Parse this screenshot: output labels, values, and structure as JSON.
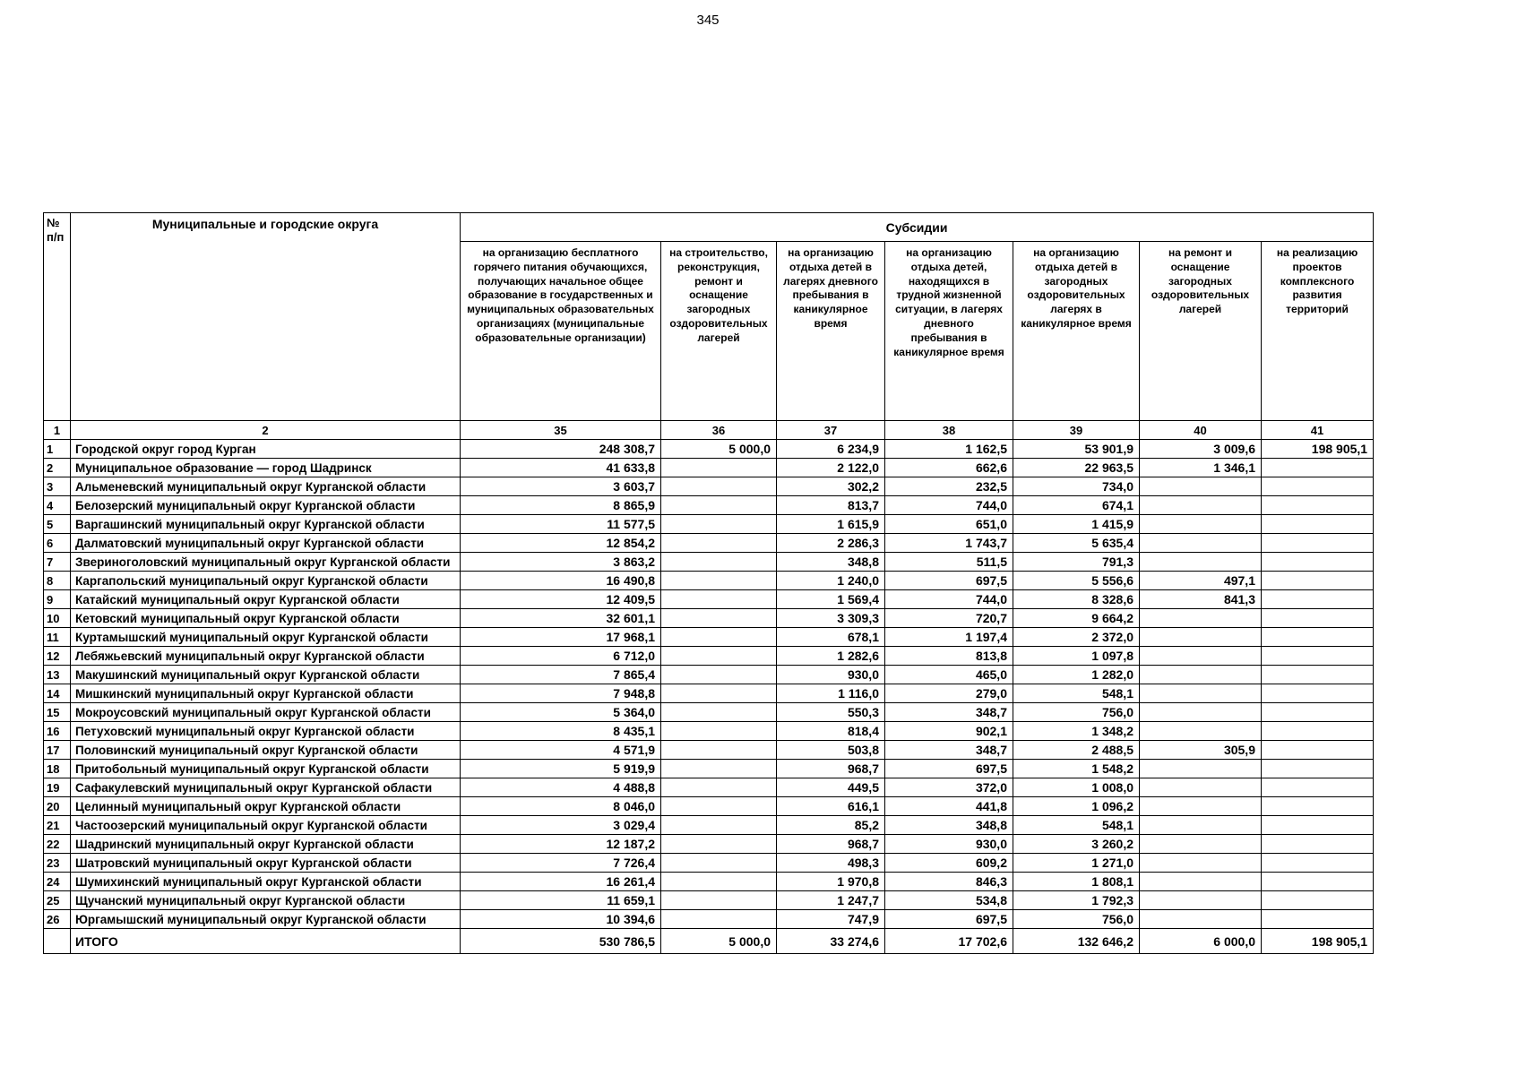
{
  "page": {
    "number": "345"
  },
  "table": {
    "headers": {
      "num": "№\nп/п",
      "municipality": "Муниципальные и городские округа",
      "subsidies": "Субсидии"
    },
    "subsidy_columns": [
      "на организацию бесплатного горячего питания обучающихся, получающих начальное общее образование в государственных и муниципальных образовательных организациях (муниципальные образовательные организации)",
      "на строительство, реконструкция, ремонт и оснащение загородных оздоровительных лагерей",
      "на организацию отдыха детей в лагерях дневного пребывания в каникулярное время",
      "на организацию отдыха детей, находящихся в трудной жизненной ситуации, в лагерях дневного пребывания в каникулярное время",
      "на организацию отдыха детей в загородных оздоровительных лагерях в каникулярное время",
      "на ремонт и оснащение загородных оздоровительных лагерей",
      "на реализацию проектов комплексного развития территорий"
    ],
    "column_numbers": [
      "1",
      "2",
      "35",
      "36",
      "37",
      "38",
      "39",
      "40",
      "41"
    ],
    "rows": [
      {
        "n": "1",
        "name": "Городской округ город Курган",
        "values": [
          "248 308,7",
          "5 000,0",
          "6 234,9",
          "1 162,5",
          "53 901,9",
          "3 009,6",
          "198 905,1"
        ]
      },
      {
        "n": "2",
        "name": "Муниципальное образование — город Шадринск",
        "values": [
          "41 633,8",
          "",
          "2 122,0",
          "662,6",
          "22 963,5",
          "1 346,1",
          ""
        ]
      },
      {
        "n": "3",
        "name": "Альменевский муниципальный округ Курганской области",
        "values": [
          "3 603,7",
          "",
          "302,2",
          "232,5",
          "734,0",
          "",
          ""
        ]
      },
      {
        "n": "4",
        "name": "Белозерский муниципальный округ Курганской области",
        "values": [
          "8 865,9",
          "",
          "813,7",
          "744,0",
          "674,1",
          "",
          ""
        ]
      },
      {
        "n": "5",
        "name": "Варгашинский муниципальный округ Курганской области",
        "values": [
          "11 577,5",
          "",
          "1 615,9",
          "651,0",
          "1 415,9",
          "",
          ""
        ]
      },
      {
        "n": "6",
        "name": "Далматовский муниципальный округ Курганской области",
        "values": [
          "12 854,2",
          "",
          "2 286,3",
          "1 743,7",
          "5 635,4",
          "",
          ""
        ]
      },
      {
        "n": "7",
        "name": "Звериноголовский муниципальный округ Курганской области",
        "values": [
          "3 863,2",
          "",
          "348,8",
          "511,5",
          "791,3",
          "",
          ""
        ]
      },
      {
        "n": "8",
        "name": "Каргапольский муниципальный округ Курганской области",
        "values": [
          "16 490,8",
          "",
          "1 240,0",
          "697,5",
          "5 556,6",
          "497,1",
          ""
        ]
      },
      {
        "n": "9",
        "name": "Катайский муниципальный округ Курганской области",
        "values": [
          "12 409,5",
          "",
          "1 569,4",
          "744,0",
          "8 328,6",
          "841,3",
          ""
        ]
      },
      {
        "n": "10",
        "name": "Кетовский муниципальный округ Курганской области",
        "values": [
          "32 601,1",
          "",
          "3 309,3",
          "720,7",
          "9 664,2",
          "",
          ""
        ]
      },
      {
        "n": "11",
        "name": "Куртамышский муниципальный округ Курганской области",
        "values": [
          "17 968,1",
          "",
          "678,1",
          "1 197,4",
          "2 372,0",
          "",
          ""
        ]
      },
      {
        "n": "12",
        "name": "Лебяжьевский муниципальный округ Курганской области",
        "values": [
          "6 712,0",
          "",
          "1 282,6",
          "813,8",
          "1 097,8",
          "",
          ""
        ]
      },
      {
        "n": "13",
        "name": "Макушинский муниципальный округ Курганской области",
        "values": [
          "7 865,4",
          "",
          "930,0",
          "465,0",
          "1 282,0",
          "",
          ""
        ]
      },
      {
        "n": "14",
        "name": "Мишкинский муниципальный округ Курганской области",
        "values": [
          "7 948,8",
          "",
          "1 116,0",
          "279,0",
          "548,1",
          "",
          ""
        ]
      },
      {
        "n": "15",
        "name": "Мокроусовский муниципальный округ Курганской области",
        "values": [
          "5 364,0",
          "",
          "550,3",
          "348,7",
          "756,0",
          "",
          ""
        ]
      },
      {
        "n": "16",
        "name": "Петуховский муниципальный округ Курганской области",
        "values": [
          "8 435,1",
          "",
          "818,4",
          "902,1",
          "1 348,2",
          "",
          ""
        ]
      },
      {
        "n": "17",
        "name": "Половинский муниципальный округ Курганской области",
        "values": [
          "4 571,9",
          "",
          "503,8",
          "348,7",
          "2 488,5",
          "305,9",
          ""
        ]
      },
      {
        "n": "18",
        "name": "Притобольный муниципальный округ Курганской области",
        "values": [
          "5 919,9",
          "",
          "968,7",
          "697,5",
          "1 548,2",
          "",
          ""
        ]
      },
      {
        "n": "19",
        "name": "Сафакулевский муниципальный округ Курганской области",
        "values": [
          "4 488,8",
          "",
          "449,5",
          "372,0",
          "1 008,0",
          "",
          ""
        ]
      },
      {
        "n": "20",
        "name": "Целинный муниципальный округ Курганской области",
        "values": [
          "8 046,0",
          "",
          "616,1",
          "441,8",
          "1 096,2",
          "",
          ""
        ]
      },
      {
        "n": "21",
        "name": "Частоозерский муниципальный округ Курганской области",
        "values": [
          "3 029,4",
          "",
          "85,2",
          "348,8",
          "548,1",
          "",
          ""
        ]
      },
      {
        "n": "22",
        "name": "Шадринский муниципальный округ Курганской области",
        "values": [
          "12 187,2",
          "",
          "968,7",
          "930,0",
          "3 260,2",
          "",
          ""
        ]
      },
      {
        "n": "23",
        "name": "Шатровский муниципальный округ Курганской области",
        "values": [
          "7 726,4",
          "",
          "498,3",
          "609,2",
          "1 271,0",
          "",
          ""
        ]
      },
      {
        "n": "24",
        "name": "Шумихинский муниципальный округ Курганской области",
        "values": [
          "16 261,4",
          "",
          "1 970,8",
          "846,3",
          "1 808,1",
          "",
          ""
        ]
      },
      {
        "n": "25",
        "name": "Щучанский муниципальный округ Курганской области",
        "values": [
          "11 659,1",
          "",
          "1 247,7",
          "534,8",
          "1 792,3",
          "",
          ""
        ]
      },
      {
        "n": "26",
        "name": "Юргамышский муниципальный округ Курганской области",
        "values": [
          "10 394,6",
          "",
          "747,9",
          "697,5",
          "756,0",
          "",
          ""
        ]
      }
    ],
    "total": {
      "label": "ИТОГО",
      "values": [
        "530 786,5",
        "5 000,0",
        "33 274,6",
        "17 702,6",
        "132 646,2",
        "6 000,0",
        "198 905,1"
      ]
    }
  }
}
